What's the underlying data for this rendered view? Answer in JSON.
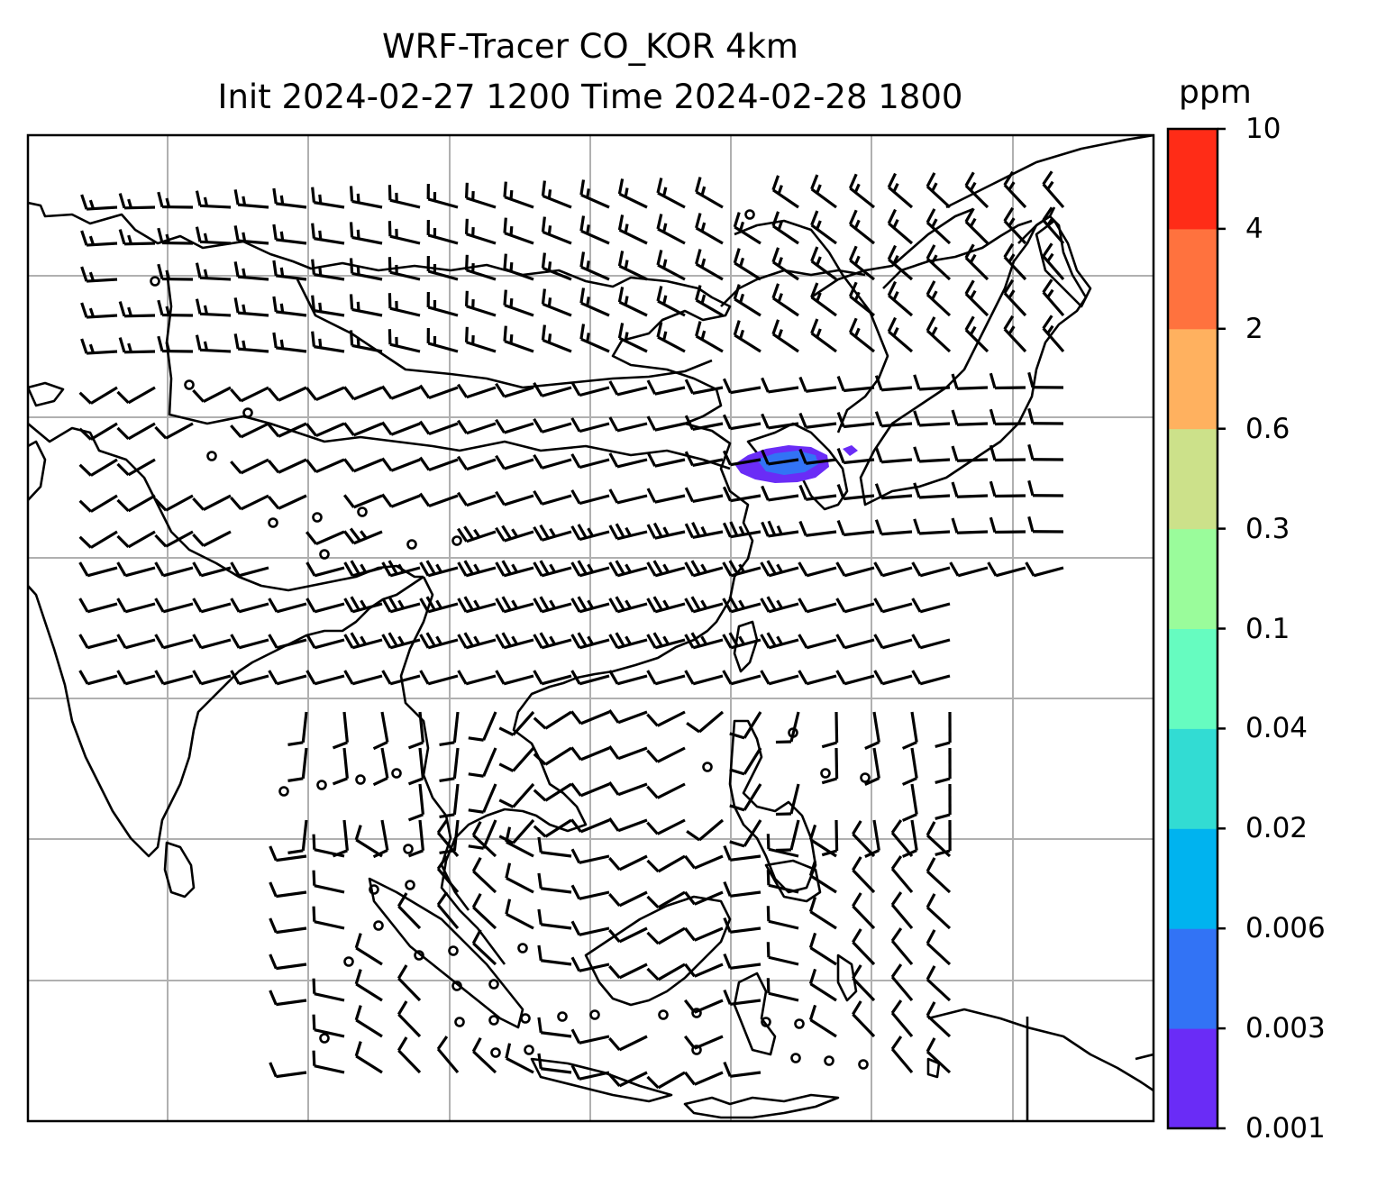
{
  "title": {
    "line1": "WRF-Tracer CO_KOR 4km",
    "line2": "Init 2024-02-27 1200 Time 2024-02-28 1800"
  },
  "colorbar": {
    "unit": "ppm",
    "ticks": [
      "0.001",
      "0.003",
      "0.006",
      "0.02",
      "0.04",
      "0.1",
      "0.3",
      "0.6",
      "2",
      "4",
      "10"
    ],
    "colors": [
      "#6a2cf6",
      "#3273f5",
      "#00b3ef",
      "#32dcd3",
      "#66fcc0",
      "#9afc9b",
      "#cce18a",
      "#ffb15f",
      "#ff723e",
      "#ff2c17"
    ]
  },
  "map": {
    "gridlines": true,
    "tracer_plume_colors": [
      "#6a2cf6",
      "#3273f5"
    ],
    "coastline_color": "#000000",
    "grid_color": "#b0b0b0"
  }
}
